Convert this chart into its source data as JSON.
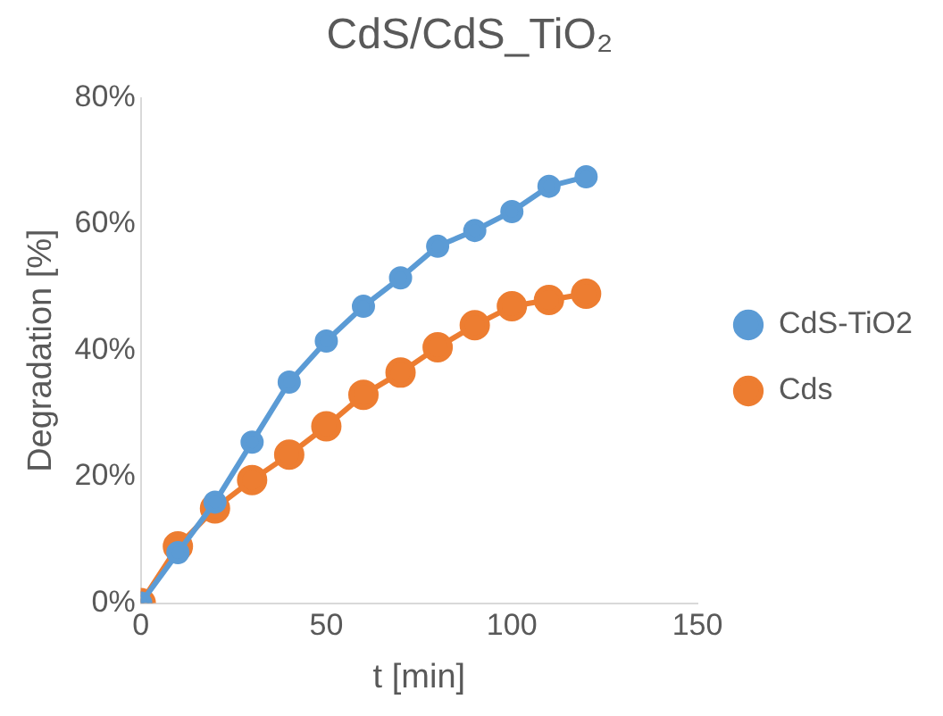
{
  "chart_data": {
    "type": "line",
    "title": "CdS/CdS_TiO₂",
    "xlabel": "t [min]",
    "ylabel": "Degradation [%]",
    "x": [
      0,
      10,
      20,
      30,
      40,
      50,
      60,
      70,
      80,
      90,
      100,
      110,
      120
    ],
    "series": [
      {
        "name": "CdS-TiO2",
        "color": "#5b9bd5",
        "values": [
          0,
          8,
          16,
          25.5,
          35,
          41.5,
          47,
          51.5,
          56.5,
          59,
          62,
          66,
          67.5
        ]
      },
      {
        "name": "Cds",
        "color": "#ed7d31",
        "values": [
          0,
          9,
          15,
          19.5,
          23.5,
          28,
          33,
          36.5,
          40.5,
          44,
          47,
          48,
          49
        ]
      }
    ],
    "xlim": [
      0,
      150
    ],
    "xticks": [
      0,
      50,
      100,
      150
    ],
    "ylim": [
      0,
      80
    ],
    "yticks": [
      {
        "value": 0,
        "label": "0%"
      },
      {
        "value": 20,
        "label": "20%"
      },
      {
        "value": 40,
        "label": "40%"
      },
      {
        "value": 60,
        "label": "60%"
      },
      {
        "value": 80,
        "label": "80%"
      }
    ],
    "grid": false,
    "legend": "right",
    "marker": "circle",
    "line_style": "solid"
  }
}
